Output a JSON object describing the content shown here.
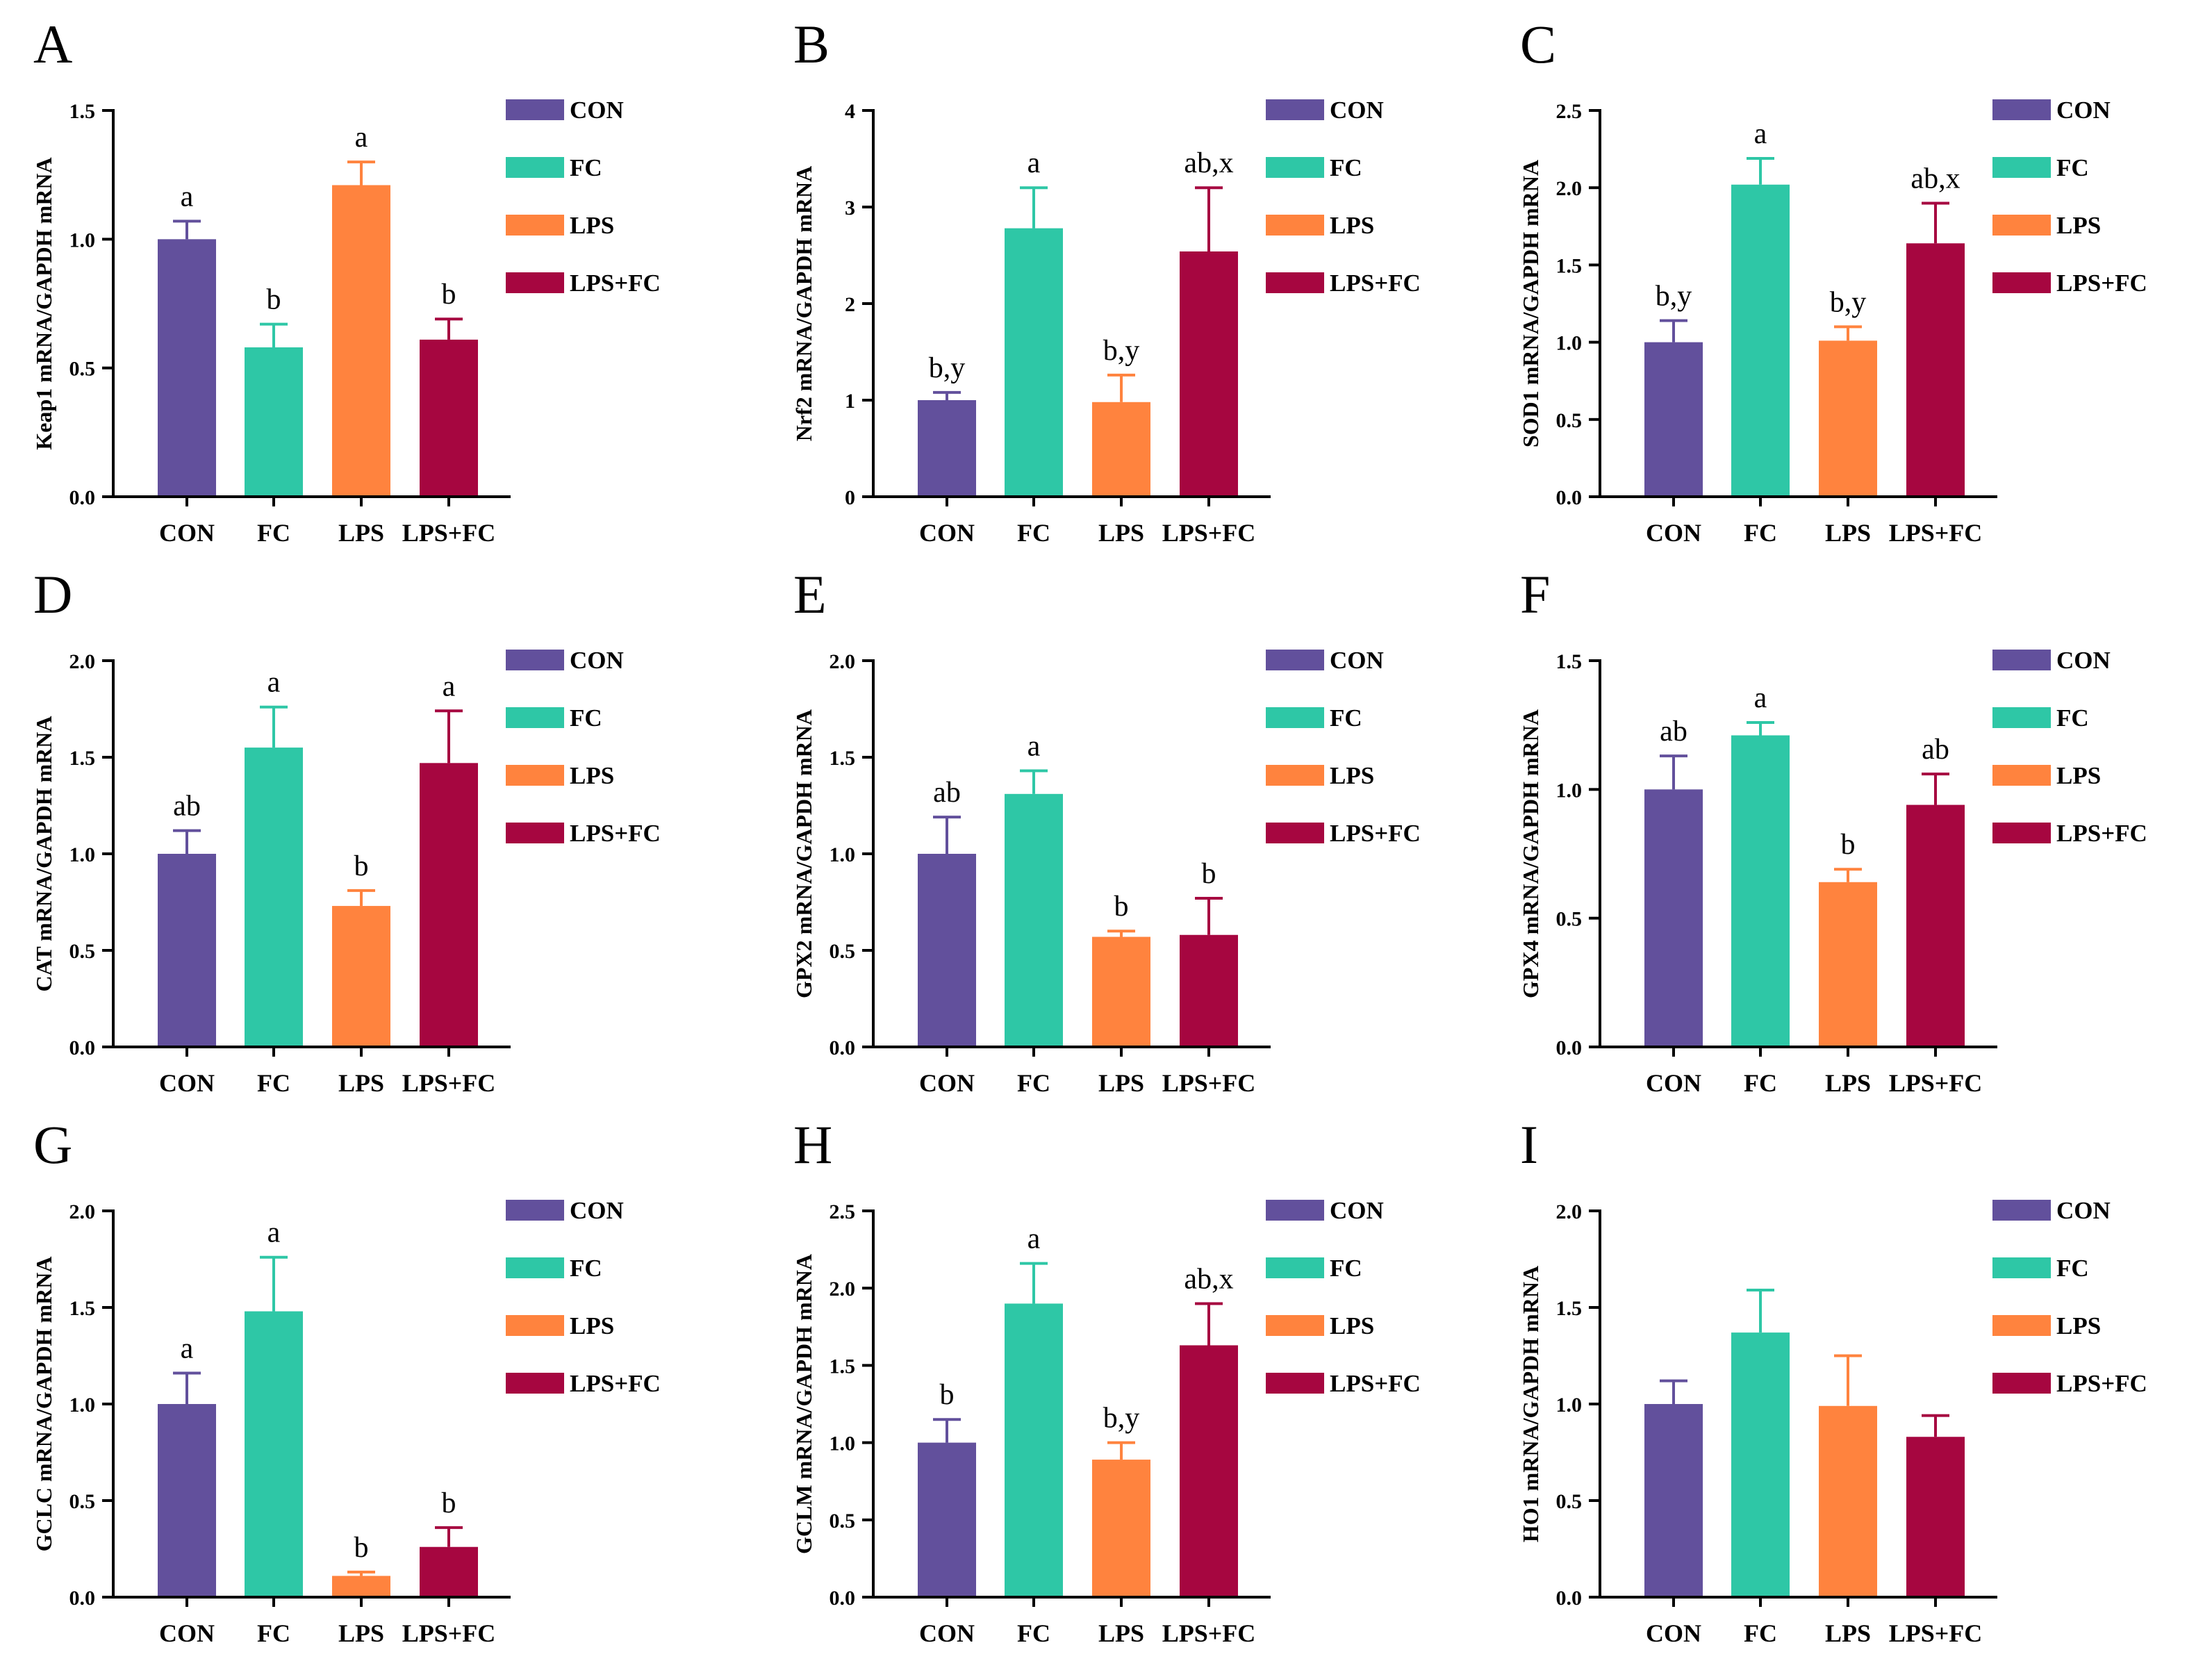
{
  "figure": {
    "title": ""
  },
  "colors": {
    "CON": "#62509C",
    "FC": "#2EC7A6",
    "LPS": "#FF833E",
    "LPS+FC": "#A60640"
  },
  "legend": [
    "CON",
    "FC",
    "LPS",
    "LPS+FC"
  ],
  "chart_data": [
    {
      "panel": "A",
      "type": "bar",
      "categories": [
        "CON",
        "FC",
        "LPS",
        "LPS+FC"
      ],
      "values": [
        1.0,
        0.58,
        1.21,
        0.61
      ],
      "errors": [
        0.07,
        0.09,
        0.09,
        0.08
      ],
      "sig": [
        "a",
        "b",
        "a",
        "b"
      ],
      "ylabel": "Keap1 mRNA/GAPDH mRNA",
      "ylim": [
        0,
        1.5
      ],
      "yticks": [
        0.0,
        0.5,
        1.0,
        1.5
      ],
      "ytick_labels": [
        "0.0",
        "0.5",
        "1.0",
        "1.5"
      ]
    },
    {
      "panel": "B",
      "type": "bar",
      "categories": [
        "CON",
        "FC",
        "LPS",
        "LPS+FC"
      ],
      "values": [
        1.0,
        2.78,
        0.98,
        2.54
      ],
      "errors": [
        0.08,
        0.42,
        0.28,
        0.66
      ],
      "sig": [
        "b,y",
        "a",
        "b,y",
        "ab,x"
      ],
      "ylabel": "Nrf2 mRNA/GAPDH mRNA",
      "ylim": [
        0,
        4
      ],
      "yticks": [
        0,
        1,
        2,
        3,
        4
      ],
      "ytick_labels": [
        "0",
        "1",
        "2",
        "3",
        "4"
      ]
    },
    {
      "panel": "C",
      "type": "bar",
      "categories": [
        "CON",
        "FC",
        "LPS",
        "LPS+FC"
      ],
      "values": [
        1.0,
        2.02,
        1.01,
        1.64
      ],
      "errors": [
        0.14,
        0.17,
        0.09,
        0.26
      ],
      "sig": [
        "b,y",
        "a",
        "b,y",
        "ab,x"
      ],
      "ylabel": "SOD1 mRNA/GAPDH mRNA",
      "ylim": [
        0,
        2.5
      ],
      "yticks": [
        0.0,
        0.5,
        1.0,
        1.5,
        2.0,
        2.5
      ],
      "ytick_labels": [
        "0.0",
        "0.5",
        "1.0",
        "1.5",
        "2.0",
        "2.5"
      ]
    },
    {
      "panel": "D",
      "type": "bar",
      "categories": [
        "CON",
        "FC",
        "LPS",
        "LPS+FC"
      ],
      "values": [
        1.0,
        1.55,
        0.73,
        1.47
      ],
      "errors": [
        0.12,
        0.21,
        0.08,
        0.27
      ],
      "sig": [
        "ab",
        "a",
        "b",
        "a"
      ],
      "ylabel": "CAT mRNA/GAPDH mRNA",
      "ylim": [
        0,
        2.0
      ],
      "yticks": [
        0.0,
        0.5,
        1.0,
        1.5,
        2.0
      ],
      "ytick_labels": [
        "0.0",
        "0.5",
        "1.0",
        "1.5",
        "2.0"
      ]
    },
    {
      "panel": "E",
      "type": "bar",
      "categories": [
        "CON",
        "FC",
        "LPS",
        "LPS+FC"
      ],
      "values": [
        1.0,
        1.31,
        0.57,
        0.58
      ],
      "errors": [
        0.19,
        0.12,
        0.03,
        0.19
      ],
      "sig": [
        "ab",
        "a",
        "b",
        "b"
      ],
      "ylabel": "GPX2 mRNA/GAPDH mRNA",
      "ylim": [
        0,
        2.0
      ],
      "yticks": [
        0.0,
        0.5,
        1.0,
        1.5,
        2.0
      ],
      "ytick_labels": [
        "0.0",
        "0.5",
        "1.0",
        "1.5",
        "2.0"
      ]
    },
    {
      "panel": "F",
      "type": "bar",
      "categories": [
        "CON",
        "FC",
        "LPS",
        "LPS+FC"
      ],
      "values": [
        1.0,
        1.21,
        0.64,
        0.94
      ],
      "errors": [
        0.13,
        0.05,
        0.05,
        0.12
      ],
      "sig": [
        "ab",
        "a",
        "b",
        "ab"
      ],
      "ylabel": "GPX4 mRNA/GAPDH mRNA",
      "ylim": [
        0,
        1.5
      ],
      "yticks": [
        0.0,
        0.5,
        1.0,
        1.5
      ],
      "ytick_labels": [
        "0.0",
        "0.5",
        "1.0",
        "1.5"
      ]
    },
    {
      "panel": "G",
      "type": "bar",
      "categories": [
        "CON",
        "FC",
        "LPS",
        "LPS+FC"
      ],
      "values": [
        1.0,
        1.48,
        0.11,
        0.26
      ],
      "errors": [
        0.16,
        0.28,
        0.02,
        0.1
      ],
      "sig": [
        "a",
        "a",
        "b",
        "b"
      ],
      "ylabel": "GCLC mRNA/GAPDH mRNA",
      "ylim": [
        0,
        2.0
      ],
      "yticks": [
        0.0,
        0.5,
        1.0,
        1.5,
        2.0
      ],
      "ytick_labels": [
        "0.0",
        "0.5",
        "1.0",
        "1.5",
        "2.0"
      ]
    },
    {
      "panel": "H",
      "type": "bar",
      "categories": [
        "CON",
        "FC",
        "LPS",
        "LPS+FC"
      ],
      "values": [
        1.0,
        1.9,
        0.89,
        1.63
      ],
      "errors": [
        0.15,
        0.26,
        0.11,
        0.27
      ],
      "sig": [
        "b",
        "a",
        "b,y",
        "ab,x"
      ],
      "ylabel": "GCLM mRNA/GAPDH mRNA",
      "ylim": [
        0,
        2.5
      ],
      "yticks": [
        0.0,
        0.5,
        1.0,
        1.5,
        2.0,
        2.5
      ],
      "ytick_labels": [
        "0.0",
        "0.5",
        "1.0",
        "1.5",
        "2.0",
        "2.5"
      ]
    },
    {
      "panel": "I",
      "type": "bar",
      "categories": [
        "CON",
        "FC",
        "LPS",
        "LPS+FC"
      ],
      "values": [
        1.0,
        1.37,
        0.99,
        0.83
      ],
      "errors": [
        0.12,
        0.22,
        0.26,
        0.11
      ],
      "sig": [
        "",
        "",
        "",
        ""
      ],
      "ylabel": "HO1 mRNA/GAPDH mRNA",
      "ylim": [
        0,
        2.0
      ],
      "yticks": [
        0.0,
        0.5,
        1.0,
        1.5,
        2.0
      ],
      "ytick_labels": [
        "0.0",
        "0.5",
        "1.0",
        "1.5",
        "2.0"
      ]
    }
  ]
}
